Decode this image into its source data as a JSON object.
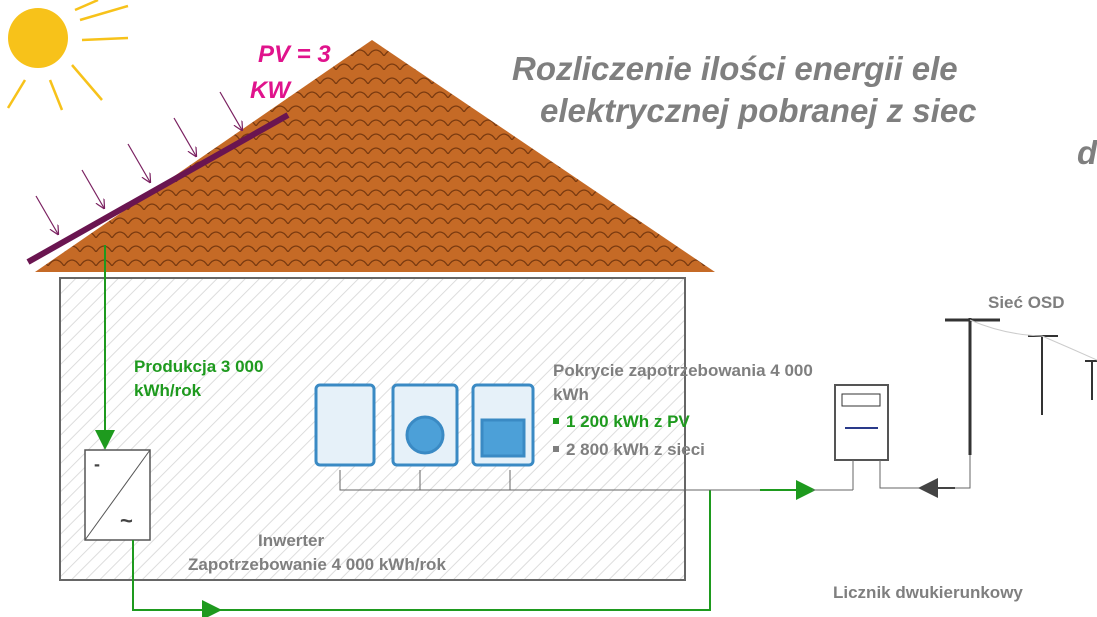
{
  "title": {
    "lines": [
      "Rozliczenie ilości energii ele",
      "elektrycznej pobranej z siec",
      "d"
    ]
  },
  "pv_label": [
    "PV = 3",
    "KW"
  ],
  "grid_label": "Sieć OSD",
  "production": [
    "Produkcja 3 000",
    "kWh/rok"
  ],
  "coverage": {
    "lines": [
      "Pokrycie zapotrzebowania 4 000",
      "kWh"
    ],
    "items": [
      "1 200 kWh z PV",
      "2 800 kWh z sieci"
    ]
  },
  "inverter": {
    "label": "Inwerter",
    "demand": "Zapotrzebowanie 4 000 kWh/rok"
  },
  "meter_label": "Licznik dwukierunkowy"
}
